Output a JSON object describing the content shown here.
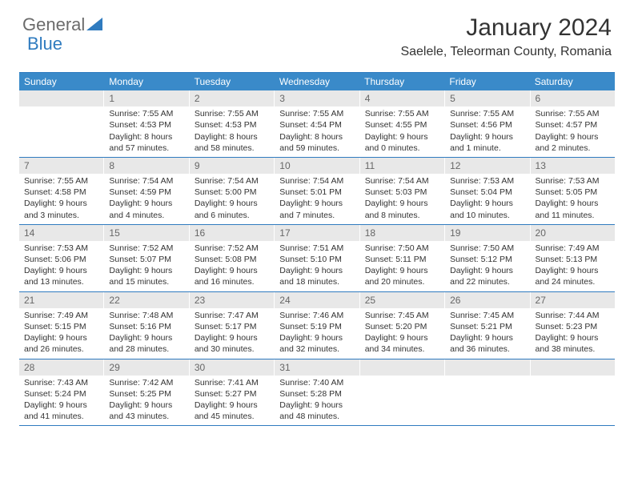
{
  "brand": {
    "part1": "General",
    "part2": "Blue"
  },
  "title": "January 2024",
  "location": "Saelele, Teleorman County, Romania",
  "colors": {
    "header_bg": "#3a8ac9",
    "header_text": "#ffffff",
    "border": "#2f7bbf",
    "daynum_bg": "#e8e8e8",
    "daynum_text": "#666666",
    "body_text": "#333333",
    "brand_gray": "#6b6b6b",
    "brand_blue": "#2f7bbf"
  },
  "day_names": [
    "Sunday",
    "Monday",
    "Tuesday",
    "Wednesday",
    "Thursday",
    "Friday",
    "Saturday"
  ],
  "weeks": [
    [
      {
        "n": "",
        "sr": "",
        "ss": "",
        "dl": ""
      },
      {
        "n": "1",
        "sr": "Sunrise: 7:55 AM",
        "ss": "Sunset: 4:53 PM",
        "dl": "Daylight: 8 hours and 57 minutes."
      },
      {
        "n": "2",
        "sr": "Sunrise: 7:55 AM",
        "ss": "Sunset: 4:53 PM",
        "dl": "Daylight: 8 hours and 58 minutes."
      },
      {
        "n": "3",
        "sr": "Sunrise: 7:55 AM",
        "ss": "Sunset: 4:54 PM",
        "dl": "Daylight: 8 hours and 59 minutes."
      },
      {
        "n": "4",
        "sr": "Sunrise: 7:55 AM",
        "ss": "Sunset: 4:55 PM",
        "dl": "Daylight: 9 hours and 0 minutes."
      },
      {
        "n": "5",
        "sr": "Sunrise: 7:55 AM",
        "ss": "Sunset: 4:56 PM",
        "dl": "Daylight: 9 hours and 1 minute."
      },
      {
        "n": "6",
        "sr": "Sunrise: 7:55 AM",
        "ss": "Sunset: 4:57 PM",
        "dl": "Daylight: 9 hours and 2 minutes."
      }
    ],
    [
      {
        "n": "7",
        "sr": "Sunrise: 7:55 AM",
        "ss": "Sunset: 4:58 PM",
        "dl": "Daylight: 9 hours and 3 minutes."
      },
      {
        "n": "8",
        "sr": "Sunrise: 7:54 AM",
        "ss": "Sunset: 4:59 PM",
        "dl": "Daylight: 9 hours and 4 minutes."
      },
      {
        "n": "9",
        "sr": "Sunrise: 7:54 AM",
        "ss": "Sunset: 5:00 PM",
        "dl": "Daylight: 9 hours and 6 minutes."
      },
      {
        "n": "10",
        "sr": "Sunrise: 7:54 AM",
        "ss": "Sunset: 5:01 PM",
        "dl": "Daylight: 9 hours and 7 minutes."
      },
      {
        "n": "11",
        "sr": "Sunrise: 7:54 AM",
        "ss": "Sunset: 5:03 PM",
        "dl": "Daylight: 9 hours and 8 minutes."
      },
      {
        "n": "12",
        "sr": "Sunrise: 7:53 AM",
        "ss": "Sunset: 5:04 PM",
        "dl": "Daylight: 9 hours and 10 minutes."
      },
      {
        "n": "13",
        "sr": "Sunrise: 7:53 AM",
        "ss": "Sunset: 5:05 PM",
        "dl": "Daylight: 9 hours and 11 minutes."
      }
    ],
    [
      {
        "n": "14",
        "sr": "Sunrise: 7:53 AM",
        "ss": "Sunset: 5:06 PM",
        "dl": "Daylight: 9 hours and 13 minutes."
      },
      {
        "n": "15",
        "sr": "Sunrise: 7:52 AM",
        "ss": "Sunset: 5:07 PM",
        "dl": "Daylight: 9 hours and 15 minutes."
      },
      {
        "n": "16",
        "sr": "Sunrise: 7:52 AM",
        "ss": "Sunset: 5:08 PM",
        "dl": "Daylight: 9 hours and 16 minutes."
      },
      {
        "n": "17",
        "sr": "Sunrise: 7:51 AM",
        "ss": "Sunset: 5:10 PM",
        "dl": "Daylight: 9 hours and 18 minutes."
      },
      {
        "n": "18",
        "sr": "Sunrise: 7:50 AM",
        "ss": "Sunset: 5:11 PM",
        "dl": "Daylight: 9 hours and 20 minutes."
      },
      {
        "n": "19",
        "sr": "Sunrise: 7:50 AM",
        "ss": "Sunset: 5:12 PM",
        "dl": "Daylight: 9 hours and 22 minutes."
      },
      {
        "n": "20",
        "sr": "Sunrise: 7:49 AM",
        "ss": "Sunset: 5:13 PM",
        "dl": "Daylight: 9 hours and 24 minutes."
      }
    ],
    [
      {
        "n": "21",
        "sr": "Sunrise: 7:49 AM",
        "ss": "Sunset: 5:15 PM",
        "dl": "Daylight: 9 hours and 26 minutes."
      },
      {
        "n": "22",
        "sr": "Sunrise: 7:48 AM",
        "ss": "Sunset: 5:16 PM",
        "dl": "Daylight: 9 hours and 28 minutes."
      },
      {
        "n": "23",
        "sr": "Sunrise: 7:47 AM",
        "ss": "Sunset: 5:17 PM",
        "dl": "Daylight: 9 hours and 30 minutes."
      },
      {
        "n": "24",
        "sr": "Sunrise: 7:46 AM",
        "ss": "Sunset: 5:19 PM",
        "dl": "Daylight: 9 hours and 32 minutes."
      },
      {
        "n": "25",
        "sr": "Sunrise: 7:45 AM",
        "ss": "Sunset: 5:20 PM",
        "dl": "Daylight: 9 hours and 34 minutes."
      },
      {
        "n": "26",
        "sr": "Sunrise: 7:45 AM",
        "ss": "Sunset: 5:21 PM",
        "dl": "Daylight: 9 hours and 36 minutes."
      },
      {
        "n": "27",
        "sr": "Sunrise: 7:44 AM",
        "ss": "Sunset: 5:23 PM",
        "dl": "Daylight: 9 hours and 38 minutes."
      }
    ],
    [
      {
        "n": "28",
        "sr": "Sunrise: 7:43 AM",
        "ss": "Sunset: 5:24 PM",
        "dl": "Daylight: 9 hours and 41 minutes."
      },
      {
        "n": "29",
        "sr": "Sunrise: 7:42 AM",
        "ss": "Sunset: 5:25 PM",
        "dl": "Daylight: 9 hours and 43 minutes."
      },
      {
        "n": "30",
        "sr": "Sunrise: 7:41 AM",
        "ss": "Sunset: 5:27 PM",
        "dl": "Daylight: 9 hours and 45 minutes."
      },
      {
        "n": "31",
        "sr": "Sunrise: 7:40 AM",
        "ss": "Sunset: 5:28 PM",
        "dl": "Daylight: 9 hours and 48 minutes."
      },
      {
        "n": "",
        "sr": "",
        "ss": "",
        "dl": ""
      },
      {
        "n": "",
        "sr": "",
        "ss": "",
        "dl": ""
      },
      {
        "n": "",
        "sr": "",
        "ss": "",
        "dl": ""
      }
    ]
  ]
}
